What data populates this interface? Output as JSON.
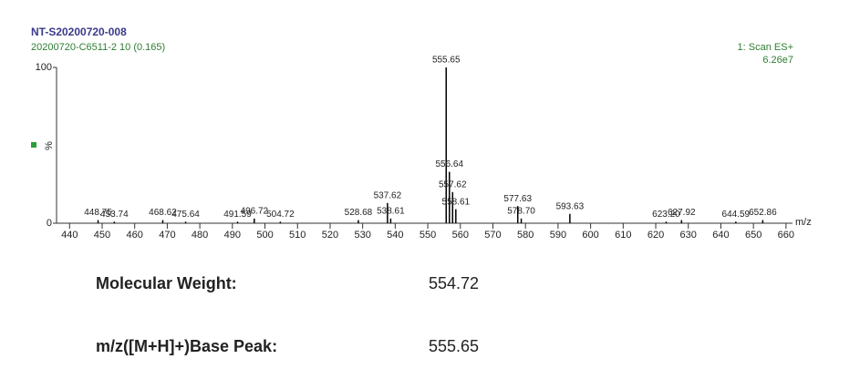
{
  "chart_data": {
    "type": "stick",
    "title": "NT-S20200720-008",
    "subtitle": "20200720-C6511-2 10 (0.165)",
    "scan_label": "1: Scan ES+",
    "intensity_label": "6.26e7",
    "ylabel": "%",
    "xlabel": "m/z",
    "x": [
      448.75,
      453.74,
      468.62,
      475.64,
      491.59,
      496.72,
      504.72,
      528.68,
      537.62,
      538.61,
      555.65,
      556.64,
      557.62,
      558.61,
      577.63,
      578.7,
      593.63,
      623.2,
      627.92,
      644.59,
      652.86
    ],
    "x_labels": [
      "448.75",
      "453.74",
      "468.62",
      "475.64",
      "491.59",
      "496.72",
      "504.72",
      "528.68",
      "537.62",
      "538.61",
      "555.65",
      "556.64",
      "557.62",
      "558.61",
      "577.63",
      "578.70",
      "593.63",
      "623.20",
      "627.92",
      "644.59",
      "652.86"
    ],
    "values": [
      2,
      1,
      2,
      1,
      1,
      3,
      1,
      2,
      13,
      3,
      100,
      33,
      20,
      9,
      11,
      3,
      6,
      1,
      2,
      1,
      2
    ],
    "color": "#000000",
    "xlim": [
      436,
      662
    ],
    "xticks": [
      440,
      450,
      460,
      470,
      480,
      490,
      500,
      510,
      520,
      530,
      540,
      550,
      560,
      570,
      580,
      590,
      600,
      610,
      620,
      630,
      640,
      650,
      660
    ],
    "ylim": [
      0,
      100
    ],
    "yticks": [
      0,
      100
    ]
  },
  "info": {
    "molecular_weight_label": "Molecular Weight:",
    "molecular_weight": "554.72",
    "base_peak_label": "m/z([M+H]+)Base Peak:",
    "base_peak": "555.65"
  }
}
